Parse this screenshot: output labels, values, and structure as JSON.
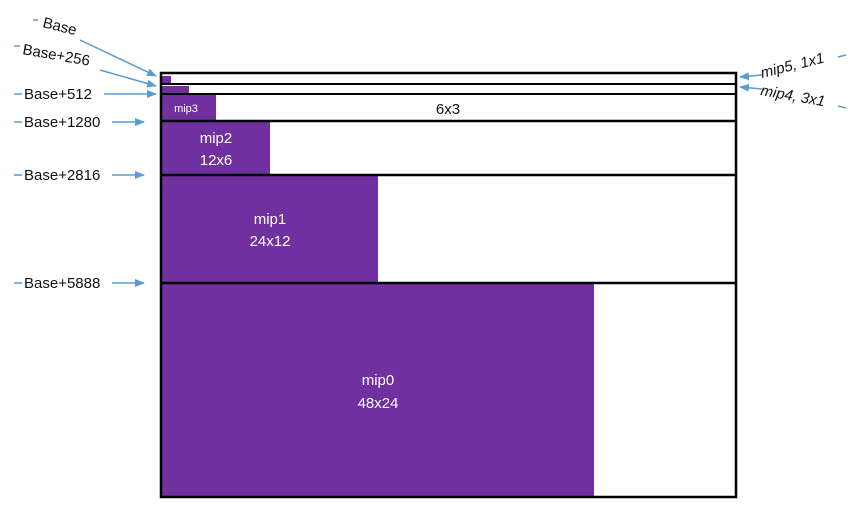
{
  "colors": {
    "mip_fill": "#7030A0",
    "arrow": "#5B9BD5",
    "border": "#000000",
    "background": "#FFFFFF"
  },
  "left_labels": {
    "base": "Base",
    "base_256": "Base+256",
    "base_512": "Base+512",
    "base_1280": "Base+1280",
    "base_2816": "Base+2816",
    "base_5888": "Base+5888"
  },
  "right_labels": {
    "mip5": "mip5, 1x1",
    "mip4": "mip4, 3x1"
  },
  "mips": {
    "mip3": {
      "name": "mip3",
      "dims": "6x3"
    },
    "mip2": {
      "name": "mip2",
      "dims": "12x6"
    },
    "mip1": {
      "name": "mip1",
      "dims": "24x12"
    },
    "mip0": {
      "name": "mip0",
      "dims": "48x24"
    }
  }
}
